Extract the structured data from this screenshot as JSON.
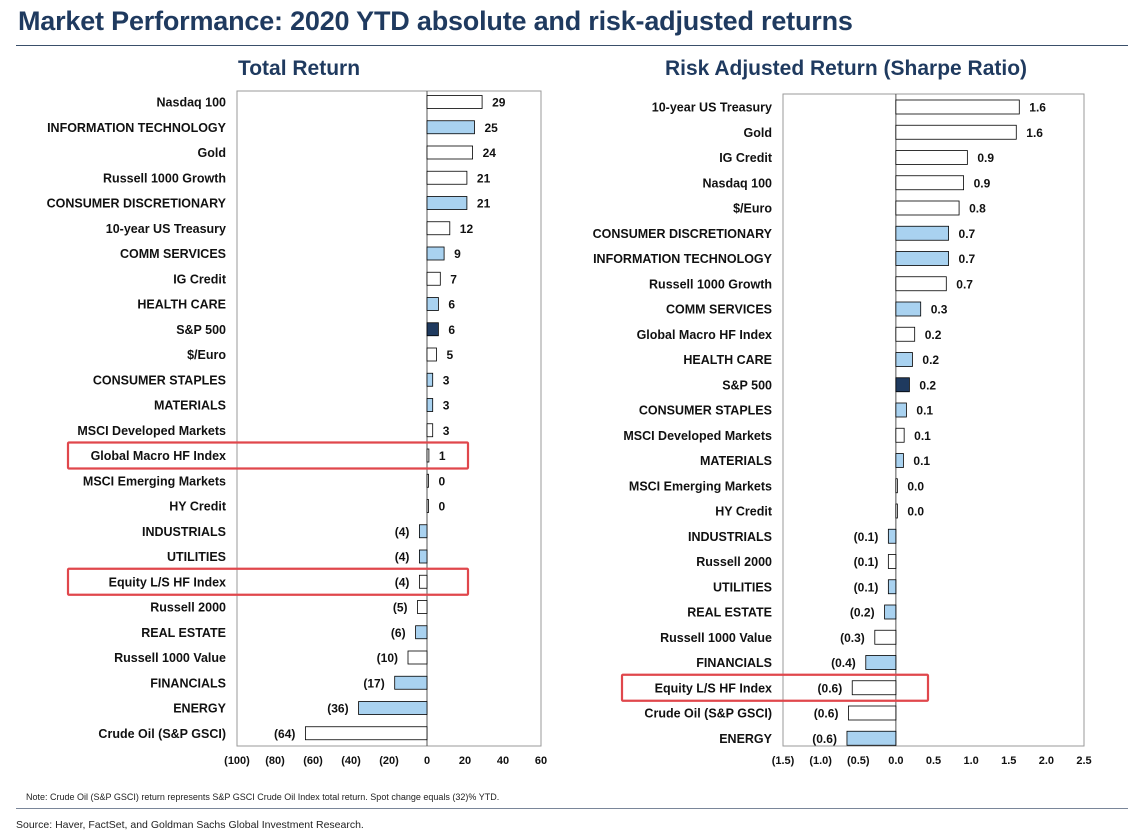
{
  "title": "Market Performance: 2020 YTD absolute and risk-adjusted returns",
  "note": "Note: Crude Oil (S&P GSCI) return represents S&P GSCI Crude Oil Index total return. Spot change equals (32)% YTD.",
  "source": "Source: Haver, FactSet, and Goldman Sachs Global Investment Research.",
  "colors": {
    "sector": "#a9d2f0",
    "index": "#ffffff",
    "sp500": "#1f3a5f",
    "highlight": "#e0474c",
    "border": "#000000"
  },
  "chart_data": [
    {
      "type": "bar",
      "orientation": "horizontal",
      "title": "Total Return",
      "xlim": [
        -100,
        60
      ],
      "xticks": [
        -100,
        -80,
        -60,
        -40,
        -20,
        0,
        20,
        40,
        60
      ],
      "xtick_labels": [
        "(100)",
        "(80)",
        "(60)",
        "(40)",
        "(20)",
        "0",
        "20",
        "40",
        "60"
      ],
      "grid": false,
      "categories": [
        "Nasdaq 100",
        "INFORMATION TECHNOLOGY",
        "Gold",
        "Russell 1000 Growth",
        "CONSUMER DISCRETIONARY",
        "10-year US Treasury",
        "COMM SERVICES",
        "IG Credit",
        "HEALTH CARE",
        "S&P 500",
        "$/Euro",
        "CONSUMER STAPLES",
        "MATERIALS",
        "MSCI Developed Markets",
        "Global Macro HF Index",
        "MSCI Emerging Markets",
        "HY Credit",
        "INDUSTRIALS",
        "UTILITIES",
        "Equity L/S HF Index",
        "Russell 2000",
        "REAL ESTATE",
        "Russell 1000 Value",
        "FINANCIALS",
        "ENERGY",
        "Crude Oil (S&P GSCI)"
      ],
      "values": [
        29,
        25,
        24,
        21,
        21,
        12,
        9,
        7,
        6,
        6,
        5,
        3,
        3,
        3,
        1,
        0,
        0,
        -4,
        -4,
        -4,
        -5,
        -6,
        -10,
        -17,
        -36,
        -64
      ],
      "value_labels": [
        "29",
        "25",
        "24",
        "21",
        "21",
        "12",
        "9",
        "7",
        "6",
        "6",
        "5",
        "3",
        "3",
        "3",
        "1",
        "0",
        "0",
        "(4)",
        "(4)",
        "(4)",
        "(5)",
        "(6)",
        "(10)",
        "(17)",
        "(36)",
        "(64)"
      ],
      "kinds": [
        "index",
        "sector",
        "index",
        "index",
        "sector",
        "index",
        "sector",
        "index",
        "sector",
        "sp500",
        "index",
        "sector",
        "sector",
        "index",
        "index",
        "index",
        "index",
        "sector",
        "sector",
        "index",
        "index",
        "sector",
        "index",
        "sector",
        "sector",
        "index"
      ],
      "highlighted": [
        "Global Macro HF Index",
        "Equity L/S HF Index"
      ]
    },
    {
      "type": "bar",
      "orientation": "horizontal",
      "title": "Risk Adjusted Return (Sharpe Ratio)",
      "xlim": [
        -1.5,
        2.5
      ],
      "xticks": [
        -1.5,
        -1.0,
        -0.5,
        0,
        0.5,
        1.0,
        1.5,
        2.0,
        2.5
      ],
      "xtick_labels": [
        "(1.5)",
        "(1.0)",
        "(0.5)",
        "0.0",
        "0.5",
        "1.0",
        "1.5",
        "2.0",
        "2.5"
      ],
      "grid": false,
      "categories": [
        "10-year US Treasury",
        "Gold",
        "IG Credit",
        "Nasdaq 100",
        "$/Euro",
        "CONSUMER DISCRETIONARY",
        "INFORMATION TECHNOLOGY",
        "Russell 1000 Growth",
        "COMM SERVICES",
        "Global Macro HF Index",
        "HEALTH CARE",
        "S&P 500",
        "CONSUMER STAPLES",
        "MSCI Developed Markets",
        "MATERIALS",
        "MSCI Emerging Markets",
        "HY Credit",
        "INDUSTRIALS",
        "Russell 2000",
        "UTILITIES",
        "REAL ESTATE",
        "Russell 1000 Value",
        "FINANCIALS",
        "Equity L/S HF Index",
        "Crude Oil (S&P GSCI)",
        "ENERGY"
      ],
      "values": [
        1.64,
        1.6,
        0.95,
        0.9,
        0.84,
        0.7,
        0.7,
        0.67,
        0.33,
        0.25,
        0.22,
        0.18,
        0.14,
        0.11,
        0.1,
        0.01,
        0.01,
        -0.1,
        -0.1,
        -0.1,
        -0.15,
        -0.28,
        -0.4,
        -0.58,
        -0.63,
        -0.65
      ],
      "value_labels": [
        "1.6",
        "1.6",
        "0.9",
        "0.9",
        "0.8",
        "0.7",
        "0.7",
        "0.7",
        "0.3",
        "0.2",
        "0.2",
        "0.2",
        "0.1",
        "0.1",
        "0.1",
        "0.0",
        "0.0",
        "(0.1)",
        "(0.1)",
        "(0.1)",
        "(0.2)",
        "(0.3)",
        "(0.4)",
        "(0.6)",
        "(0.6)",
        "(0.6)"
      ],
      "kinds": [
        "index",
        "index",
        "index",
        "index",
        "index",
        "sector",
        "sector",
        "index",
        "sector",
        "index",
        "sector",
        "sp500",
        "sector",
        "index",
        "sector",
        "index",
        "index",
        "sector",
        "index",
        "sector",
        "sector",
        "index",
        "sector",
        "index",
        "index",
        "sector"
      ],
      "highlighted": [
        "Equity L/S HF Index"
      ]
    }
  ]
}
